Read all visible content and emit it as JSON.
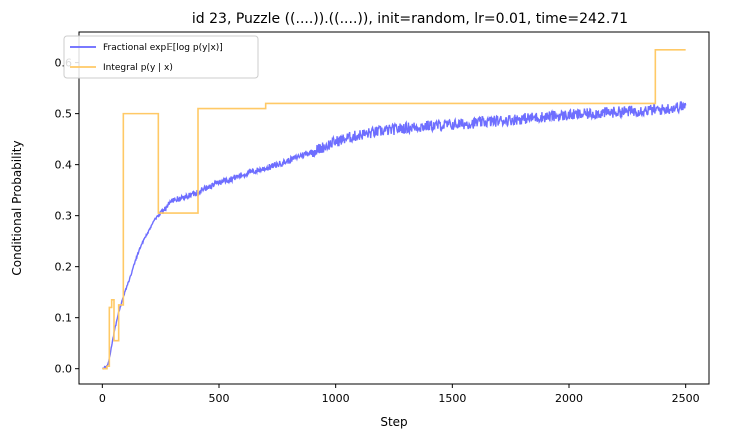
{
  "chart_data": {
    "type": "line",
    "title": "id 23, Puzzle ((....)).((....)), init=random, lr=0.01, time=242.71",
    "xlabel": "Step",
    "ylabel": "Conditional Probability",
    "xlim": [
      -100,
      2600
    ],
    "ylim": [
      -0.03,
      0.66
    ],
    "xticks": [
      0,
      500,
      1000,
      1500,
      2000,
      2500
    ],
    "yticks": [
      0.0,
      0.1,
      0.2,
      0.3,
      0.4,
      0.5,
      0.6
    ],
    "xtick_labels": [
      "0",
      "500",
      "1000",
      "1500",
      "2000",
      "2500"
    ],
    "ytick_labels": [
      "0.0",
      "0.1",
      "0.2",
      "0.3",
      "0.4",
      "0.5",
      "0.6"
    ],
    "grid": false,
    "legend_position": "top-left",
    "series": [
      {
        "name": "Fractional exp𝔼[log p(y|x)]",
        "color": "#6666ff",
        "style": "noisy-line",
        "x": [
          0,
          20,
          30,
          40,
          50,
          60,
          70,
          80,
          90,
          100,
          120,
          140,
          160,
          180,
          200,
          220,
          240,
          260,
          280,
          300,
          350,
          400,
          450,
          500,
          550,
          600,
          650,
          700,
          750,
          800,
          850,
          900,
          950,
          1000,
          1050,
          1100,
          1150,
          1200,
          1300,
          1400,
          1500,
          1600,
          1700,
          1800,
          1900,
          2000,
          2100,
          2200,
          2300,
          2400,
          2500
        ],
        "y": [
          0.0,
          0.005,
          0.02,
          0.045,
          0.07,
          0.09,
          0.11,
          0.125,
          0.14,
          0.155,
          0.18,
          0.21,
          0.235,
          0.255,
          0.27,
          0.29,
          0.3,
          0.31,
          0.32,
          0.33,
          0.335,
          0.345,
          0.355,
          0.365,
          0.372,
          0.38,
          0.387,
          0.393,
          0.4,
          0.408,
          0.418,
          0.425,
          0.435,
          0.445,
          0.452,
          0.458,
          0.462,
          0.466,
          0.472,
          0.476,
          0.478,
          0.482,
          0.486,
          0.49,
          0.494,
          0.497,
          0.5,
          0.503,
          0.506,
          0.508,
          0.515
        ]
      },
      {
        "name": "Integral p(y | x)",
        "color": "#ffc966",
        "style": "step",
        "x": [
          0,
          20,
          30,
          40,
          50,
          60,
          70,
          90,
          240,
          410,
          700,
          1940,
          2370,
          2500
        ],
        "y": [
          0.0,
          0.005,
          0.12,
          0.135,
          0.055,
          0.055,
          0.125,
          0.5,
          0.305,
          0.51,
          0.52,
          0.52,
          0.625,
          0.625
        ]
      }
    ]
  }
}
